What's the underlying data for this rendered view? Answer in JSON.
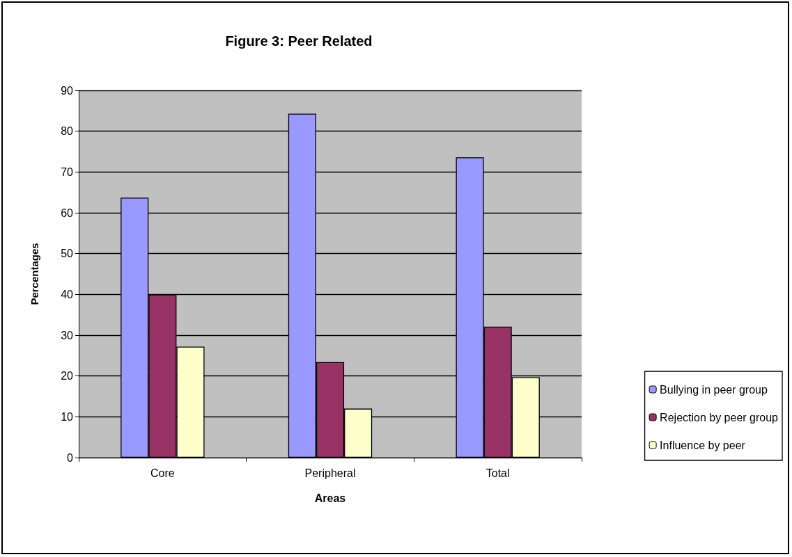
{
  "chart_data": {
    "type": "bar",
    "title": "Figure 3: Peer Related",
    "xlabel": "Areas",
    "ylabel": "Percentages",
    "categories": [
      "Core",
      "Peripheral",
      "Total"
    ],
    "series": [
      {
        "name": "Bullying in peer group",
        "color": "#9999ff",
        "values": [
          63.7,
          84.3,
          73.6
        ]
      },
      {
        "name": "Rejection by peer group",
        "color": "#993366",
        "values": [
          40,
          23.4,
          32.1
        ]
      },
      {
        "name": "Influence by peer",
        "color": "#ffffcc",
        "values": [
          27.2,
          12,
          19.7
        ]
      }
    ],
    "ylim": [
      0,
      90
    ],
    "yticks": [
      0,
      10,
      20,
      30,
      40,
      50,
      60,
      70,
      80,
      90
    ],
    "grid": "y",
    "legend": "right"
  }
}
